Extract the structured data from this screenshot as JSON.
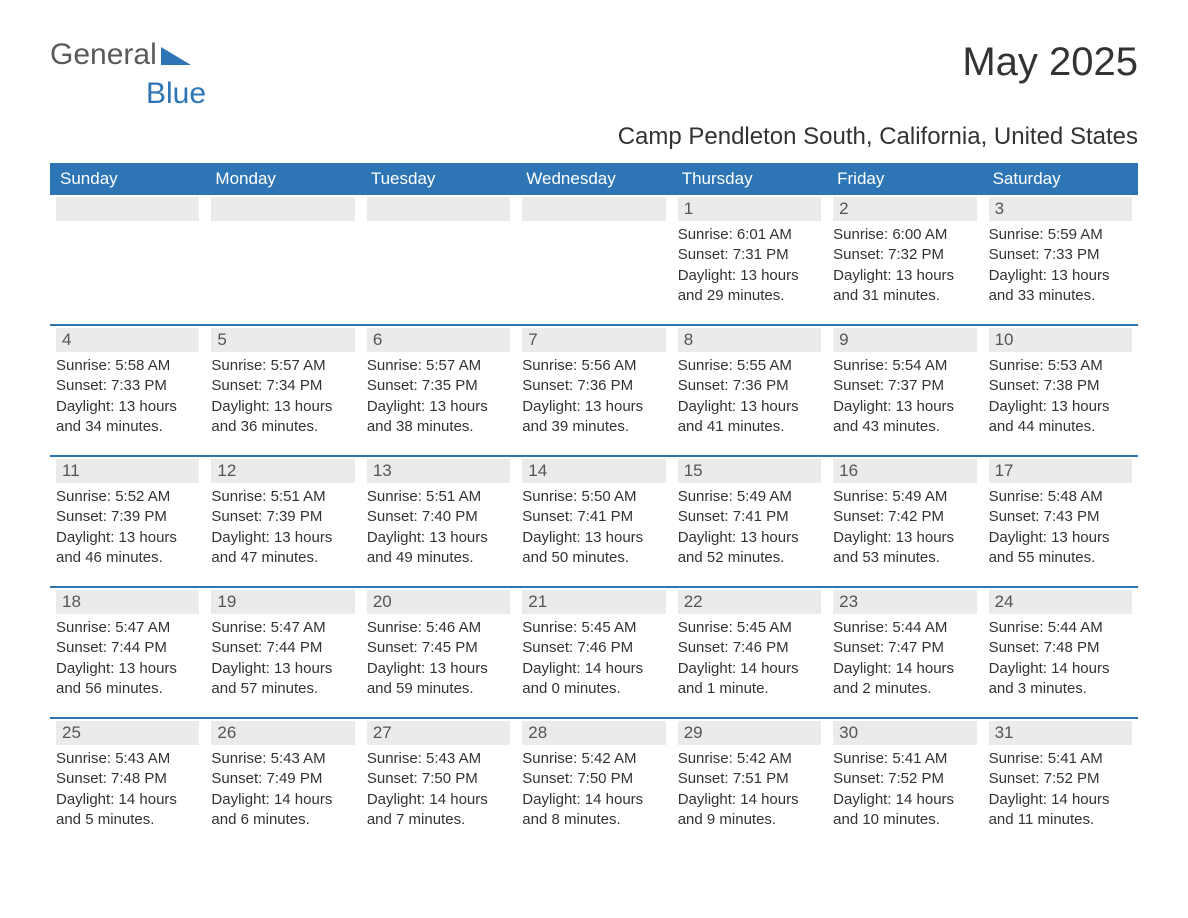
{
  "logo": {
    "text_general": "General",
    "text_blue": "Blue"
  },
  "title": "May 2025",
  "subtitle": "Camp Pendleton South, California, United States",
  "colors": {
    "header_bg": "#2e75b6",
    "header_text": "#ffffff",
    "daynum_bg": "#ebebeb",
    "daynum_text": "#555555",
    "body_text": "#333333",
    "page_bg": "#ffffff"
  },
  "days_of_week": [
    "Sunday",
    "Monday",
    "Tuesday",
    "Wednesday",
    "Thursday",
    "Friday",
    "Saturday"
  ],
  "weeks": [
    [
      null,
      null,
      null,
      null,
      {
        "n": "1",
        "sunrise": "Sunrise: 6:01 AM",
        "sunset": "Sunset: 7:31 PM",
        "day1": "Daylight: 13 hours",
        "day2": "and 29 minutes."
      },
      {
        "n": "2",
        "sunrise": "Sunrise: 6:00 AM",
        "sunset": "Sunset: 7:32 PM",
        "day1": "Daylight: 13 hours",
        "day2": "and 31 minutes."
      },
      {
        "n": "3",
        "sunrise": "Sunrise: 5:59 AM",
        "sunset": "Sunset: 7:33 PM",
        "day1": "Daylight: 13 hours",
        "day2": "and 33 minutes."
      }
    ],
    [
      {
        "n": "4",
        "sunrise": "Sunrise: 5:58 AM",
        "sunset": "Sunset: 7:33 PM",
        "day1": "Daylight: 13 hours",
        "day2": "and 34 minutes."
      },
      {
        "n": "5",
        "sunrise": "Sunrise: 5:57 AM",
        "sunset": "Sunset: 7:34 PM",
        "day1": "Daylight: 13 hours",
        "day2": "and 36 minutes."
      },
      {
        "n": "6",
        "sunrise": "Sunrise: 5:57 AM",
        "sunset": "Sunset: 7:35 PM",
        "day1": "Daylight: 13 hours",
        "day2": "and 38 minutes."
      },
      {
        "n": "7",
        "sunrise": "Sunrise: 5:56 AM",
        "sunset": "Sunset: 7:36 PM",
        "day1": "Daylight: 13 hours",
        "day2": "and 39 minutes."
      },
      {
        "n": "8",
        "sunrise": "Sunrise: 5:55 AM",
        "sunset": "Sunset: 7:36 PM",
        "day1": "Daylight: 13 hours",
        "day2": "and 41 minutes."
      },
      {
        "n": "9",
        "sunrise": "Sunrise: 5:54 AM",
        "sunset": "Sunset: 7:37 PM",
        "day1": "Daylight: 13 hours",
        "day2": "and 43 minutes."
      },
      {
        "n": "10",
        "sunrise": "Sunrise: 5:53 AM",
        "sunset": "Sunset: 7:38 PM",
        "day1": "Daylight: 13 hours",
        "day2": "and 44 minutes."
      }
    ],
    [
      {
        "n": "11",
        "sunrise": "Sunrise: 5:52 AM",
        "sunset": "Sunset: 7:39 PM",
        "day1": "Daylight: 13 hours",
        "day2": "and 46 minutes."
      },
      {
        "n": "12",
        "sunrise": "Sunrise: 5:51 AM",
        "sunset": "Sunset: 7:39 PM",
        "day1": "Daylight: 13 hours",
        "day2": "and 47 minutes."
      },
      {
        "n": "13",
        "sunrise": "Sunrise: 5:51 AM",
        "sunset": "Sunset: 7:40 PM",
        "day1": "Daylight: 13 hours",
        "day2": "and 49 minutes."
      },
      {
        "n": "14",
        "sunrise": "Sunrise: 5:50 AM",
        "sunset": "Sunset: 7:41 PM",
        "day1": "Daylight: 13 hours",
        "day2": "and 50 minutes."
      },
      {
        "n": "15",
        "sunrise": "Sunrise: 5:49 AM",
        "sunset": "Sunset: 7:41 PM",
        "day1": "Daylight: 13 hours",
        "day2": "and 52 minutes."
      },
      {
        "n": "16",
        "sunrise": "Sunrise: 5:49 AM",
        "sunset": "Sunset: 7:42 PM",
        "day1": "Daylight: 13 hours",
        "day2": "and 53 minutes."
      },
      {
        "n": "17",
        "sunrise": "Sunrise: 5:48 AM",
        "sunset": "Sunset: 7:43 PM",
        "day1": "Daylight: 13 hours",
        "day2": "and 55 minutes."
      }
    ],
    [
      {
        "n": "18",
        "sunrise": "Sunrise: 5:47 AM",
        "sunset": "Sunset: 7:44 PM",
        "day1": "Daylight: 13 hours",
        "day2": "and 56 minutes."
      },
      {
        "n": "19",
        "sunrise": "Sunrise: 5:47 AM",
        "sunset": "Sunset: 7:44 PM",
        "day1": "Daylight: 13 hours",
        "day2": "and 57 minutes."
      },
      {
        "n": "20",
        "sunrise": "Sunrise: 5:46 AM",
        "sunset": "Sunset: 7:45 PM",
        "day1": "Daylight: 13 hours",
        "day2": "and 59 minutes."
      },
      {
        "n": "21",
        "sunrise": "Sunrise: 5:45 AM",
        "sunset": "Sunset: 7:46 PM",
        "day1": "Daylight: 14 hours",
        "day2": "and 0 minutes."
      },
      {
        "n": "22",
        "sunrise": "Sunrise: 5:45 AM",
        "sunset": "Sunset: 7:46 PM",
        "day1": "Daylight: 14 hours",
        "day2": "and 1 minute."
      },
      {
        "n": "23",
        "sunrise": "Sunrise: 5:44 AM",
        "sunset": "Sunset: 7:47 PM",
        "day1": "Daylight: 14 hours",
        "day2": "and 2 minutes."
      },
      {
        "n": "24",
        "sunrise": "Sunrise: 5:44 AM",
        "sunset": "Sunset: 7:48 PM",
        "day1": "Daylight: 14 hours",
        "day2": "and 3 minutes."
      }
    ],
    [
      {
        "n": "25",
        "sunrise": "Sunrise: 5:43 AM",
        "sunset": "Sunset: 7:48 PM",
        "day1": "Daylight: 14 hours",
        "day2": "and 5 minutes."
      },
      {
        "n": "26",
        "sunrise": "Sunrise: 5:43 AM",
        "sunset": "Sunset: 7:49 PM",
        "day1": "Daylight: 14 hours",
        "day2": "and 6 minutes."
      },
      {
        "n": "27",
        "sunrise": "Sunrise: 5:43 AM",
        "sunset": "Sunset: 7:50 PM",
        "day1": "Daylight: 14 hours",
        "day2": "and 7 minutes."
      },
      {
        "n": "28",
        "sunrise": "Sunrise: 5:42 AM",
        "sunset": "Sunset: 7:50 PM",
        "day1": "Daylight: 14 hours",
        "day2": "and 8 minutes."
      },
      {
        "n": "29",
        "sunrise": "Sunrise: 5:42 AM",
        "sunset": "Sunset: 7:51 PM",
        "day1": "Daylight: 14 hours",
        "day2": "and 9 minutes."
      },
      {
        "n": "30",
        "sunrise": "Sunrise: 5:41 AM",
        "sunset": "Sunset: 7:52 PM",
        "day1": "Daylight: 14 hours",
        "day2": "and 10 minutes."
      },
      {
        "n": "31",
        "sunrise": "Sunrise: 5:41 AM",
        "sunset": "Sunset: 7:52 PM",
        "day1": "Daylight: 14 hours",
        "day2": "and 11 minutes."
      }
    ]
  ]
}
